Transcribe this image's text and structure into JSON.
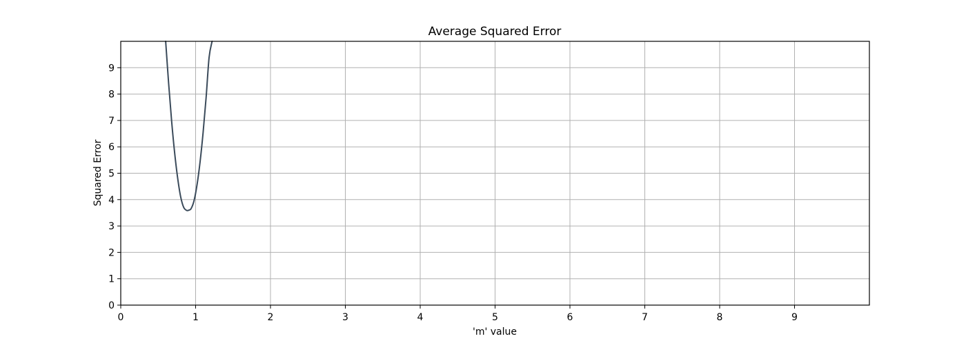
{
  "chart_data": {
    "type": "line",
    "title": "Average Squared Error",
    "xlabel": "'m' value",
    "ylabel": "Squared Error",
    "xlim": [
      0,
      10
    ],
    "ylim": [
      0,
      10
    ],
    "xticks": [
      0,
      1,
      2,
      3,
      4,
      5,
      6,
      7,
      8,
      9
    ],
    "yticks": [
      0,
      1,
      2,
      3,
      4,
      5,
      6,
      7,
      8,
      9
    ],
    "grid": true,
    "series": [
      {
        "color": "#3a4a5a",
        "x": [
          0.6,
          0.64,
          0.68,
          0.72,
          0.76,
          0.8,
          0.84,
          0.88,
          0.91,
          0.94,
          0.98,
          1.02,
          1.06,
          1.1,
          1.14,
          1.18,
          1.22
        ],
        "y": [
          10.0,
          8.39,
          6.96,
          5.77,
          4.82,
          4.11,
          3.71,
          3.59,
          3.6,
          3.66,
          3.97,
          4.58,
          5.44,
          6.54,
          7.86,
          9.39,
          10.0
        ]
      }
    ]
  }
}
